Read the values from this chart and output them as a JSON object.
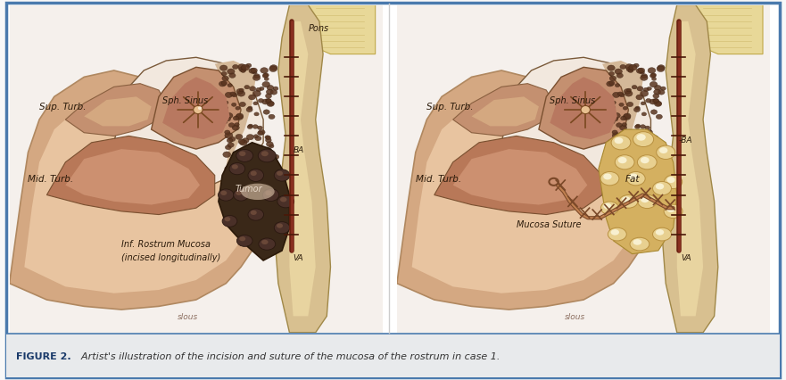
{
  "figure_width": 8.81,
  "figure_height": 4.26,
  "dpi": 100,
  "bg_color": "#f8f8f8",
  "panel_bg": "#ffffff",
  "border_color": "#4a7aad",
  "caption_bg": "#e8eaec",
  "caption_bold": "FIGURE 2.",
  "caption_italic": "  Artist's illustration of the incision and suture of the mucosa of the rostrum in case 1.",
  "caption_bold_color": "#1a3a6a",
  "caption_italic_color": "#333333",
  "caption_fontsize": 8.0,
  "left_labels": {
    "sup_turb": "Sup. Turb.",
    "mid_turb": "Mid. Turb.",
    "inf_rostrum_1": "Inf. Rostrum Mucosa",
    "inf_rostrum_2": "(incised longitudinally)",
    "sph_sinus": "Sph. Sinus",
    "ba": "BA",
    "pons": "Pons",
    "tumor": "Tumor",
    "va": "VA"
  },
  "right_labels": {
    "sup_turb": "Sup. Turb.",
    "mid_turb": "Mid. Turb.",
    "sph_sinus": "Sph. Sinus",
    "ba": "-BA",
    "fat": "Fat",
    "mucosa_suture": "Mucosa Suture",
    "va": "VA"
  }
}
